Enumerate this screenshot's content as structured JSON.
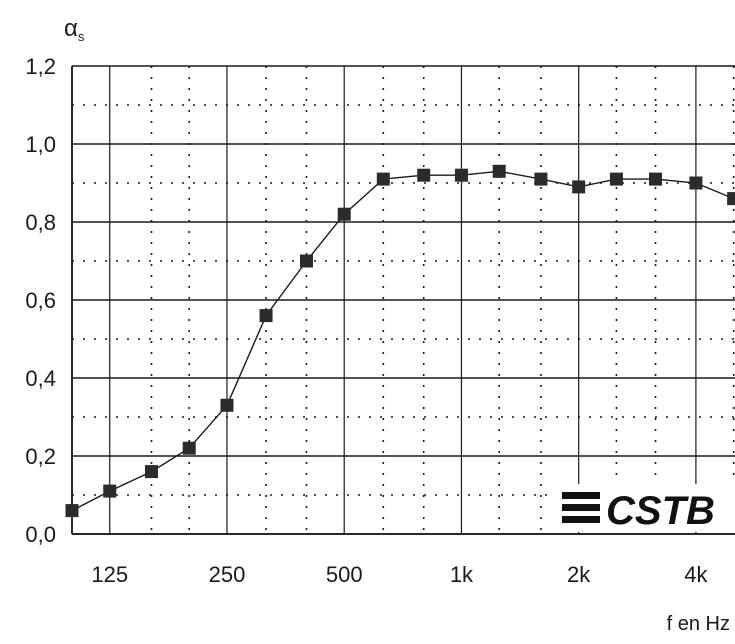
{
  "chart_data": {
    "type": "line",
    "title": "",
    "ylabel": "α",
    "ylabel_subscript": "s",
    "xlabel": "f en Hz",
    "x_scale": "log",
    "xlim": [
      100,
      5040
    ],
    "ylim": [
      0.0,
      1.2
    ],
    "y_ticks": [
      0.0,
      0.2,
      0.4,
      0.6,
      0.8,
      1.0,
      1.2
    ],
    "y_tick_labels": [
      "0,0",
      "0,2",
      "0,4",
      "0,6",
      "0,8",
      "1,0",
      "1,2"
    ],
    "x_ticks": [
      125,
      250,
      500,
      1000,
      2000,
      4000
    ],
    "x_tick_labels": [
      "125",
      "250",
      "500",
      "1k",
      "2k",
      "4k"
    ],
    "grid": true,
    "series": [
      {
        "name": "",
        "marker": "square",
        "x": [
          100,
          125,
          160,
          200,
          250,
          315,
          400,
          500,
          630,
          800,
          1000,
          1250,
          1600,
          2000,
          2500,
          3150,
          4000,
          5000
        ],
        "values": [
          0.06,
          0.11,
          0.16,
          0.22,
          0.33,
          0.56,
          0.7,
          0.82,
          0.91,
          0.92,
          0.92,
          0.93,
          0.91,
          0.89,
          0.91,
          0.91,
          0.9,
          0.86
        ]
      }
    ],
    "logo_text": "CSTB",
    "colors": {
      "line": "#1a1a1a",
      "marker": "#2b2b2b",
      "grid": "#1a1a1a",
      "background": "#ffffff"
    }
  }
}
